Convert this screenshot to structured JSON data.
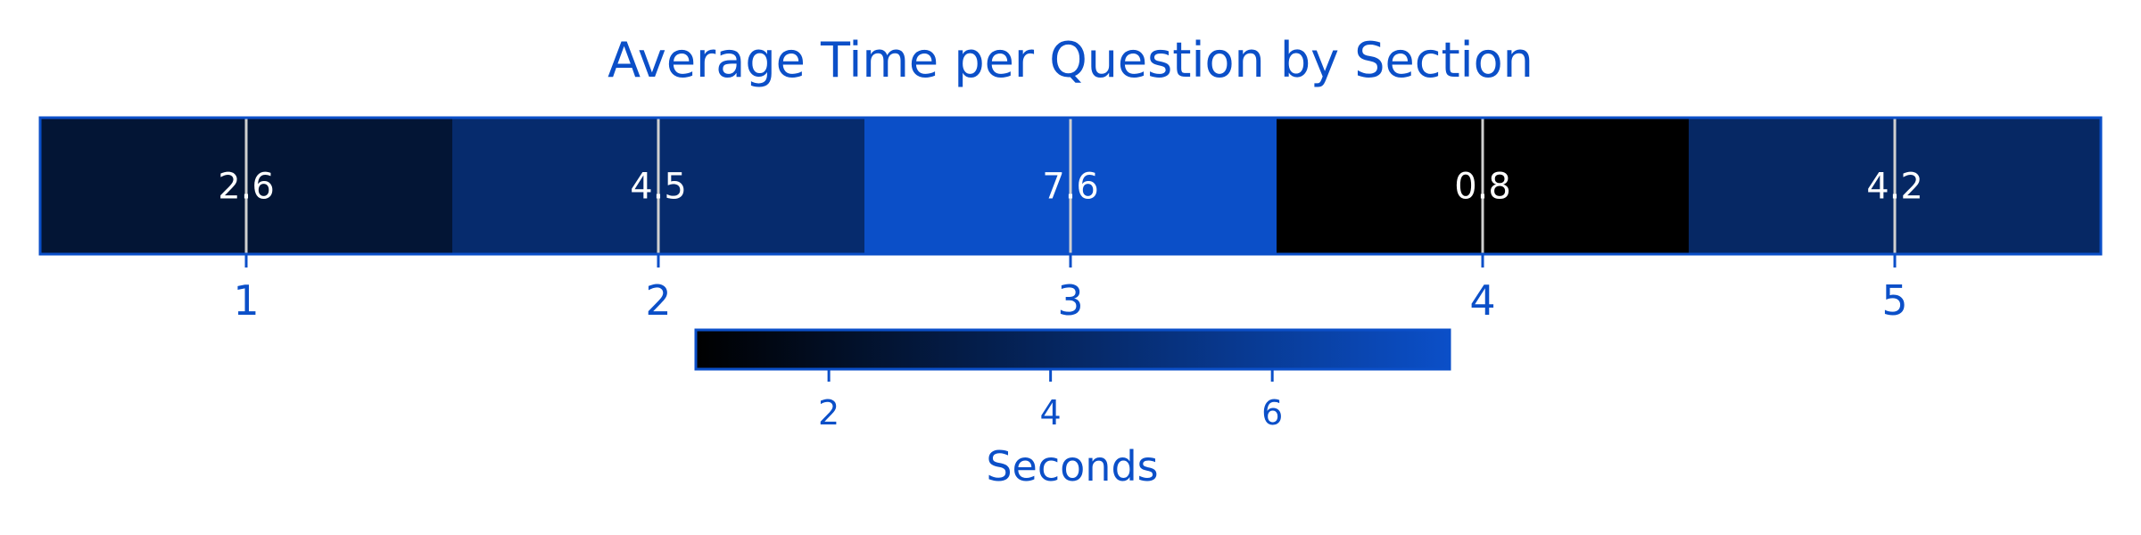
{
  "chart_data": {
    "type": "heatmap",
    "title": "Average Time per Question by Section",
    "categories": [
      "1",
      "2",
      "3",
      "4",
      "5"
    ],
    "values": [
      2.6,
      4.5,
      7.6,
      0.8,
      4.2
    ],
    "value_labels": [
      "2.6",
      "4.5",
      "7.6",
      "0.8",
      "4.2"
    ],
    "xlabel": "",
    "ylabel": "",
    "grid": true,
    "colormap": [
      "#000000",
      "#0b4fc8"
    ],
    "vlim": [
      0.8,
      7.6
    ],
    "colorbar": {
      "orientation": "horizontal",
      "label": "Seconds",
      "ticks": [
        2,
        4,
        6
      ],
      "tick_labels": [
        "2",
        "4",
        "6"
      ],
      "range": [
        0.8,
        7.6
      ]
    }
  },
  "colors": {
    "accent": "#0b4fc8",
    "cell_text": "#ffffff",
    "grid": "#d0d0d0",
    "background": "#ffffff"
  }
}
